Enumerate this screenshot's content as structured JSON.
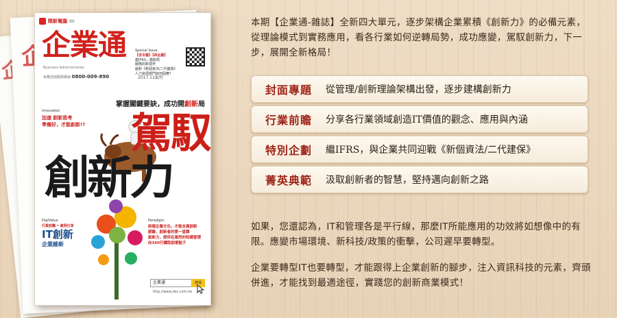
{
  "magazine": {
    "brand": "精新電腦",
    "issue_no": "90",
    "title": "企業通",
    "subtitle": "Business Administration",
    "hotline_label": "免費諮詢服務專線",
    "hotline": "0800-009-890",
    "date": "2017.11出刊",
    "special_issue": "Special Issue",
    "special_tags": "【法令篇】【四台篇】",
    "special_lines": [
      "趨IFRS，趨新局",
      "服務的新境界",
      "面對《新個資法/二代健保》",
      "人力資源部門如何因應？"
    ],
    "headline_prefix": "掌握關鍵要訣，成功開",
    "headline_highlight": "創新",
    "headline_suffix": "局",
    "big_title_1": "駕馭",
    "big_title_2": "創新力",
    "innovation_label": "Innovation",
    "innovation_head": "加速 創新思考",
    "innovation_head2": "準備好，才能創新!?",
    "digivalue_label": "DigiValue",
    "it_tag": "行業前瞻 • 產例分享",
    "it_big": "IT創新",
    "it_sub": "企業維新",
    "paradigm_label": "Paradigm",
    "paradigm_items": [
      "訴諸企業文化，才能全員創新",
      "經驗，創新者的第一堂課",
      "創新力，提供在激烈的知識管理",
      "向360行讀取創意點子"
    ],
    "search_value": "企業通",
    "search_button": "搜尋",
    "url": "http://www.dsc.com.tw"
  },
  "intro": "本期【企業通-雜誌】全新四大單元，逐步架構企業累積《創新力》的必備元素，從理論模式到實務應用，看各行業如何逆轉局勢，成功應變，駕馭創新力，下一步，展開全新格局！",
  "sections": [
    {
      "title": "封面專題",
      "desc": "從管理/創新理論架構出發，逐步建構創新力"
    },
    {
      "title": "行業前瞻",
      "desc": "分享各行業領域創造IT價值的觀念、應用與內涵"
    },
    {
      "title": "特別企劃",
      "desc": "繼IFRS，與企業共同迎戰《新個資法/二代建保》"
    },
    {
      "title": "菁英典範",
      "desc": "汲取創新者的智慧，堅持邁向創新之路"
    }
  ],
  "paragraph_1": "如果，您還認為，IT和管理各是平行線，那麼IT所能應用的功效將如想像中的有限。應變市場環境、新科技/政策的衝擊，公司遲早要轉型。",
  "paragraph_2": "企業要轉型IT也要轉型，才能跟得上企業創新的腳步，注入資訊科技的元素，齊頭併進，才能找到最適途徑，實踐您的創新商業模式！",
  "colors": {
    "accent_red": "#cc1f18",
    "section_title": "#9e2418",
    "background": "#ead6bd"
  }
}
